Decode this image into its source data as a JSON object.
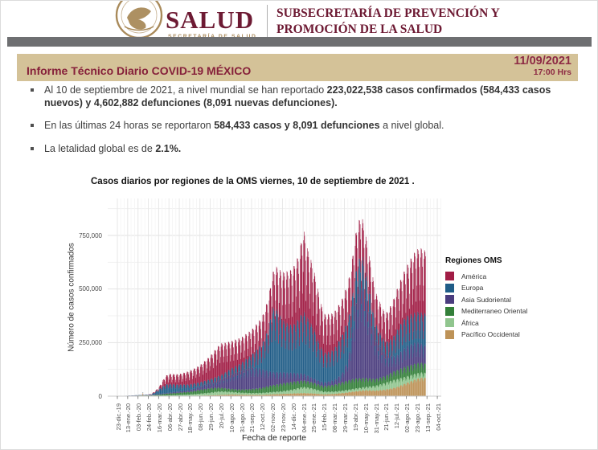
{
  "header": {
    "logo_word": "SALUD",
    "logo_subtext": "SECRETARÍA DE SALUD",
    "org_line1": "SUBSECRETARÍA DE PREVENCIÓN Y",
    "org_line2": "PROMOCIÓN DE LA SALUD"
  },
  "title_bar": {
    "title": "Informe Técnico Diario COVID-19 MÉXICO",
    "date": "11/09/2021",
    "time": "17:00 Hrs"
  },
  "bullets": [
    {
      "segments": [
        {
          "text": "Al 10 de septiembre de 2021, a nivel mundial se han reportado ",
          "bold": false
        },
        {
          "text": "223,022,538 casos confirmados (584,433 casos nuevos) y 4,602,882 defunciones (8,091 nuevas defunciones).",
          "bold": true
        }
      ]
    },
    {
      "segments": [
        {
          "text": "En las últimas 24 horas se reportaron ",
          "bold": false
        },
        {
          "text": "584,433 casos y 8,091 defunciones",
          "bold": true
        },
        {
          "text": " a nivel global.",
          "bold": false
        }
      ]
    },
    {
      "segments": [
        {
          "text": "La letalidad global es de ",
          "bold": false
        },
        {
          "text": "2.1%.",
          "bold": true
        }
      ]
    }
  ],
  "colors": {
    "brand_maroon": "#6d1a33",
    "gold": "#a98a5a",
    "gray_bar": "#6e6f71",
    "tan_bar": "#d4c298",
    "title_maroon": "#86203a"
  },
  "chart_data": {
    "type": "bar",
    "stacked": true,
    "title": "Casos diarios por regiones de la OMS viernes, 10 de septiembre de 2021 .",
    "xlabel": "Fecha de reporte",
    "ylabel": "Número de casos confirmados",
    "ylim": [
      0,
      920000
    ],
    "grid": true,
    "legend_title": "Regiones OMS",
    "legend_position": "right",
    "ytick_values_thousands": [
      0,
      250,
      500,
      750
    ],
    "ytick_labels": [
      "0",
      "250,000",
      "500,000",
      "750,000"
    ],
    "x_tick_interval_days": 21,
    "x_tick_labels": [
      "23-dic.-19",
      "13-ene.-20",
      "03-feb.-20",
      "24-feb.-20",
      "16-mar.-20",
      "06-abr.-20",
      "27-abr.-20",
      "18-may.-20",
      "08-jun.-20",
      "29-jun.-20",
      "20-jul.-20",
      "10-ago.-20",
      "31-ago.-20",
      "21-sep.-20",
      "12-oct.-20",
      "02-nov.-20",
      "23-nov.-20",
      "14-dic.-20",
      "04-ene.-21",
      "25-ene.-21",
      "15-feb.-21",
      "08-mar.-21",
      "29-mar.-21",
      "19-abr.-21",
      "10-may.-21",
      "31-may.-21",
      "21-jun.-21",
      "12-jul.-21",
      "02-ago.-21",
      "23-ago.-21",
      "13-sep.-21",
      "04-oct.-21"
    ],
    "end_data_day": 627,
    "weekly_pattern": [
      0.72,
      0.93,
      1.0,
      0.99,
      0.96,
      0.86,
      0.6
    ],
    "value_unit": "thousands of confirmed cases per day (envelope keyframes [day,value])",
    "series": [
      {
        "name": "América",
        "color": "#a11d45",
        "weekly_weight": 1,
        "keyframes": [
          [
            0,
            0
          ],
          [
            60,
            0
          ],
          [
            70,
            2
          ],
          [
            84,
            8
          ],
          [
            98,
            40
          ],
          [
            105,
            46
          ],
          [
            126,
            48
          ],
          [
            147,
            62
          ],
          [
            168,
            78
          ],
          [
            189,
            108
          ],
          [
            203,
            135
          ],
          [
            210,
            148
          ],
          [
            217,
            140
          ],
          [
            231,
            128
          ],
          [
            252,
            118
          ],
          [
            273,
            115
          ],
          [
            294,
            122
          ],
          [
            315,
            155
          ],
          [
            322,
            195
          ],
          [
            336,
            220
          ],
          [
            357,
            265
          ],
          [
            371,
            300
          ],
          [
            378,
            390
          ],
          [
            385,
            330
          ],
          [
            399,
            275
          ],
          [
            413,
            210
          ],
          [
            420,
            180
          ],
          [
            441,
            170
          ],
          [
            462,
            168
          ],
          [
            483,
            178
          ],
          [
            497,
            180
          ],
          [
            504,
            168
          ],
          [
            525,
            145
          ],
          [
            546,
            130
          ],
          [
            567,
            185
          ],
          [
            588,
            230
          ],
          [
            602,
            275
          ],
          [
            609,
            290
          ],
          [
            620,
            300
          ],
          [
            627,
            290
          ]
        ]
      },
      {
        "name": "Europa",
        "color": "#1f5c87",
        "weekly_weight": 1,
        "keyframes": [
          [
            0,
            0
          ],
          [
            63,
            1
          ],
          [
            70,
            3
          ],
          [
            84,
            22
          ],
          [
            91,
            32
          ],
          [
            98,
            40
          ],
          [
            105,
            42
          ],
          [
            112,
            38
          ],
          [
            126,
            32
          ],
          [
            147,
            26
          ],
          [
            168,
            20
          ],
          [
            189,
            18
          ],
          [
            210,
            20
          ],
          [
            231,
            26
          ],
          [
            252,
            36
          ],
          [
            273,
            58
          ],
          [
            294,
            115
          ],
          [
            308,
            200
          ],
          [
            315,
            300
          ],
          [
            322,
            300
          ],
          [
            329,
            272
          ],
          [
            336,
            245
          ],
          [
            350,
            225
          ],
          [
            357,
            222
          ],
          [
            371,
            260
          ],
          [
            378,
            295
          ],
          [
            385,
            275
          ],
          [
            399,
            238
          ],
          [
            413,
            168
          ],
          [
            420,
            140
          ],
          [
            434,
            138
          ],
          [
            441,
            145
          ],
          [
            455,
            175
          ],
          [
            462,
            185
          ],
          [
            469,
            188
          ],
          [
            483,
            158
          ],
          [
            497,
            138
          ],
          [
            504,
            115
          ],
          [
            518,
            88
          ],
          [
            525,
            74
          ],
          [
            539,
            60
          ],
          [
            546,
            58
          ],
          [
            560,
            84
          ],
          [
            567,
            115
          ],
          [
            581,
            138
          ],
          [
            588,
            140
          ],
          [
            609,
            140
          ],
          [
            627,
            150
          ]
        ]
      },
      {
        "name": "Asia Sudoriental",
        "color": "#4a3c7e",
        "weekly_weight": 0.9,
        "keyframes": [
          [
            0,
            0
          ],
          [
            98,
            3
          ],
          [
            126,
            6
          ],
          [
            147,
            9
          ],
          [
            168,
            15
          ],
          [
            189,
            24
          ],
          [
            210,
            38
          ],
          [
            231,
            68
          ],
          [
            252,
            88
          ],
          [
            266,
            98
          ],
          [
            273,
            102
          ],
          [
            287,
            95
          ],
          [
            294,
            88
          ],
          [
            315,
            62
          ],
          [
            336,
            52
          ],
          [
            357,
            42
          ],
          [
            378,
            32
          ],
          [
            399,
            20
          ],
          [
            420,
            16
          ],
          [
            441,
            22
          ],
          [
            455,
            35
          ],
          [
            462,
            58
          ],
          [
            469,
            95
          ],
          [
            476,
            175
          ],
          [
            483,
            320
          ],
          [
            490,
            400
          ],
          [
            497,
            445
          ],
          [
            504,
            400
          ],
          [
            511,
            335
          ],
          [
            518,
            258
          ],
          [
            525,
            188
          ],
          [
            539,
            128
          ],
          [
            546,
            100
          ],
          [
            560,
            74
          ],
          [
            567,
            66
          ],
          [
            581,
            84
          ],
          [
            588,
            94
          ],
          [
            602,
            98
          ],
          [
            609,
            100
          ],
          [
            620,
            88
          ],
          [
            627,
            84
          ]
        ]
      },
      {
        "name": "Mediterraneo Oriental",
        "color": "#337f39",
        "weekly_weight": 0.6,
        "keyframes": [
          [
            0,
            0
          ],
          [
            70,
            1
          ],
          [
            84,
            4
          ],
          [
            105,
            9
          ],
          [
            126,
            11
          ],
          [
            147,
            13
          ],
          [
            168,
            19
          ],
          [
            189,
            21
          ],
          [
            210,
            17
          ],
          [
            231,
            14
          ],
          [
            252,
            15
          ],
          [
            273,
            19
          ],
          [
            294,
            24
          ],
          [
            315,
            32
          ],
          [
            336,
            37
          ],
          [
            357,
            36
          ],
          [
            378,
            31
          ],
          [
            399,
            28
          ],
          [
            420,
            26
          ],
          [
            441,
            32
          ],
          [
            462,
            42
          ],
          [
            483,
            47
          ],
          [
            504,
            42
          ],
          [
            525,
            32
          ],
          [
            546,
            32
          ],
          [
            567,
            42
          ],
          [
            588,
            48
          ],
          [
            609,
            47
          ],
          [
            627,
            44
          ]
        ]
      },
      {
        "name": "África",
        "color": "#90c58e",
        "weekly_weight": 0.6,
        "keyframes": [
          [
            0,
            0
          ],
          [
            84,
            1
          ],
          [
            105,
            2
          ],
          [
            126,
            4
          ],
          [
            147,
            6
          ],
          [
            168,
            9
          ],
          [
            189,
            13
          ],
          [
            203,
            17
          ],
          [
            210,
            17
          ],
          [
            231,
            13
          ],
          [
            252,
            10
          ],
          [
            273,
            9
          ],
          [
            294,
            10
          ],
          [
            315,
            11
          ],
          [
            336,
            13
          ],
          [
            357,
            19
          ],
          [
            371,
            26
          ],
          [
            378,
            29
          ],
          [
            385,
            28
          ],
          [
            399,
            23
          ],
          [
            413,
            16
          ],
          [
            420,
            13
          ],
          [
            441,
            11
          ],
          [
            462,
            12
          ],
          [
            483,
            13
          ],
          [
            504,
            15
          ],
          [
            525,
            22
          ],
          [
            546,
            32
          ],
          [
            560,
            37
          ],
          [
            567,
            37
          ],
          [
            581,
            33
          ],
          [
            588,
            31
          ],
          [
            609,
            26
          ],
          [
            627,
            23
          ]
        ]
      },
      {
        "name": "Pacífico Occidental",
        "color": "#bd9257",
        "weekly_weight": 0.5,
        "keyframes": [
          [
            0,
            0
          ],
          [
            40,
            2
          ],
          [
            51,
            3
          ],
          [
            52,
            15
          ],
          [
            53,
            3
          ],
          [
            84,
            2
          ],
          [
            105,
            2
          ],
          [
            126,
            2
          ],
          [
            147,
            2
          ],
          [
            168,
            3
          ],
          [
            189,
            4
          ],
          [
            210,
            6
          ],
          [
            231,
            8
          ],
          [
            252,
            7
          ],
          [
            273,
            6
          ],
          [
            294,
            6
          ],
          [
            315,
            9
          ],
          [
            336,
            11
          ],
          [
            357,
            13
          ],
          [
            378,
            15
          ],
          [
            399,
            13
          ],
          [
            420,
            9
          ],
          [
            441,
            11
          ],
          [
            462,
            16
          ],
          [
            483,
            23
          ],
          [
            504,
            29
          ],
          [
            525,
            27
          ],
          [
            546,
            32
          ],
          [
            567,
            42
          ],
          [
            588,
            62
          ],
          [
            609,
            82
          ],
          [
            620,
            88
          ],
          [
            627,
            86
          ]
        ]
      }
    ],
    "stack_order_bottom_to_top": [
      "Pacífico Occidental",
      "África",
      "Mediterraneo Oriental",
      "Asia Sudoriental",
      "Europa",
      "América"
    ]
  }
}
